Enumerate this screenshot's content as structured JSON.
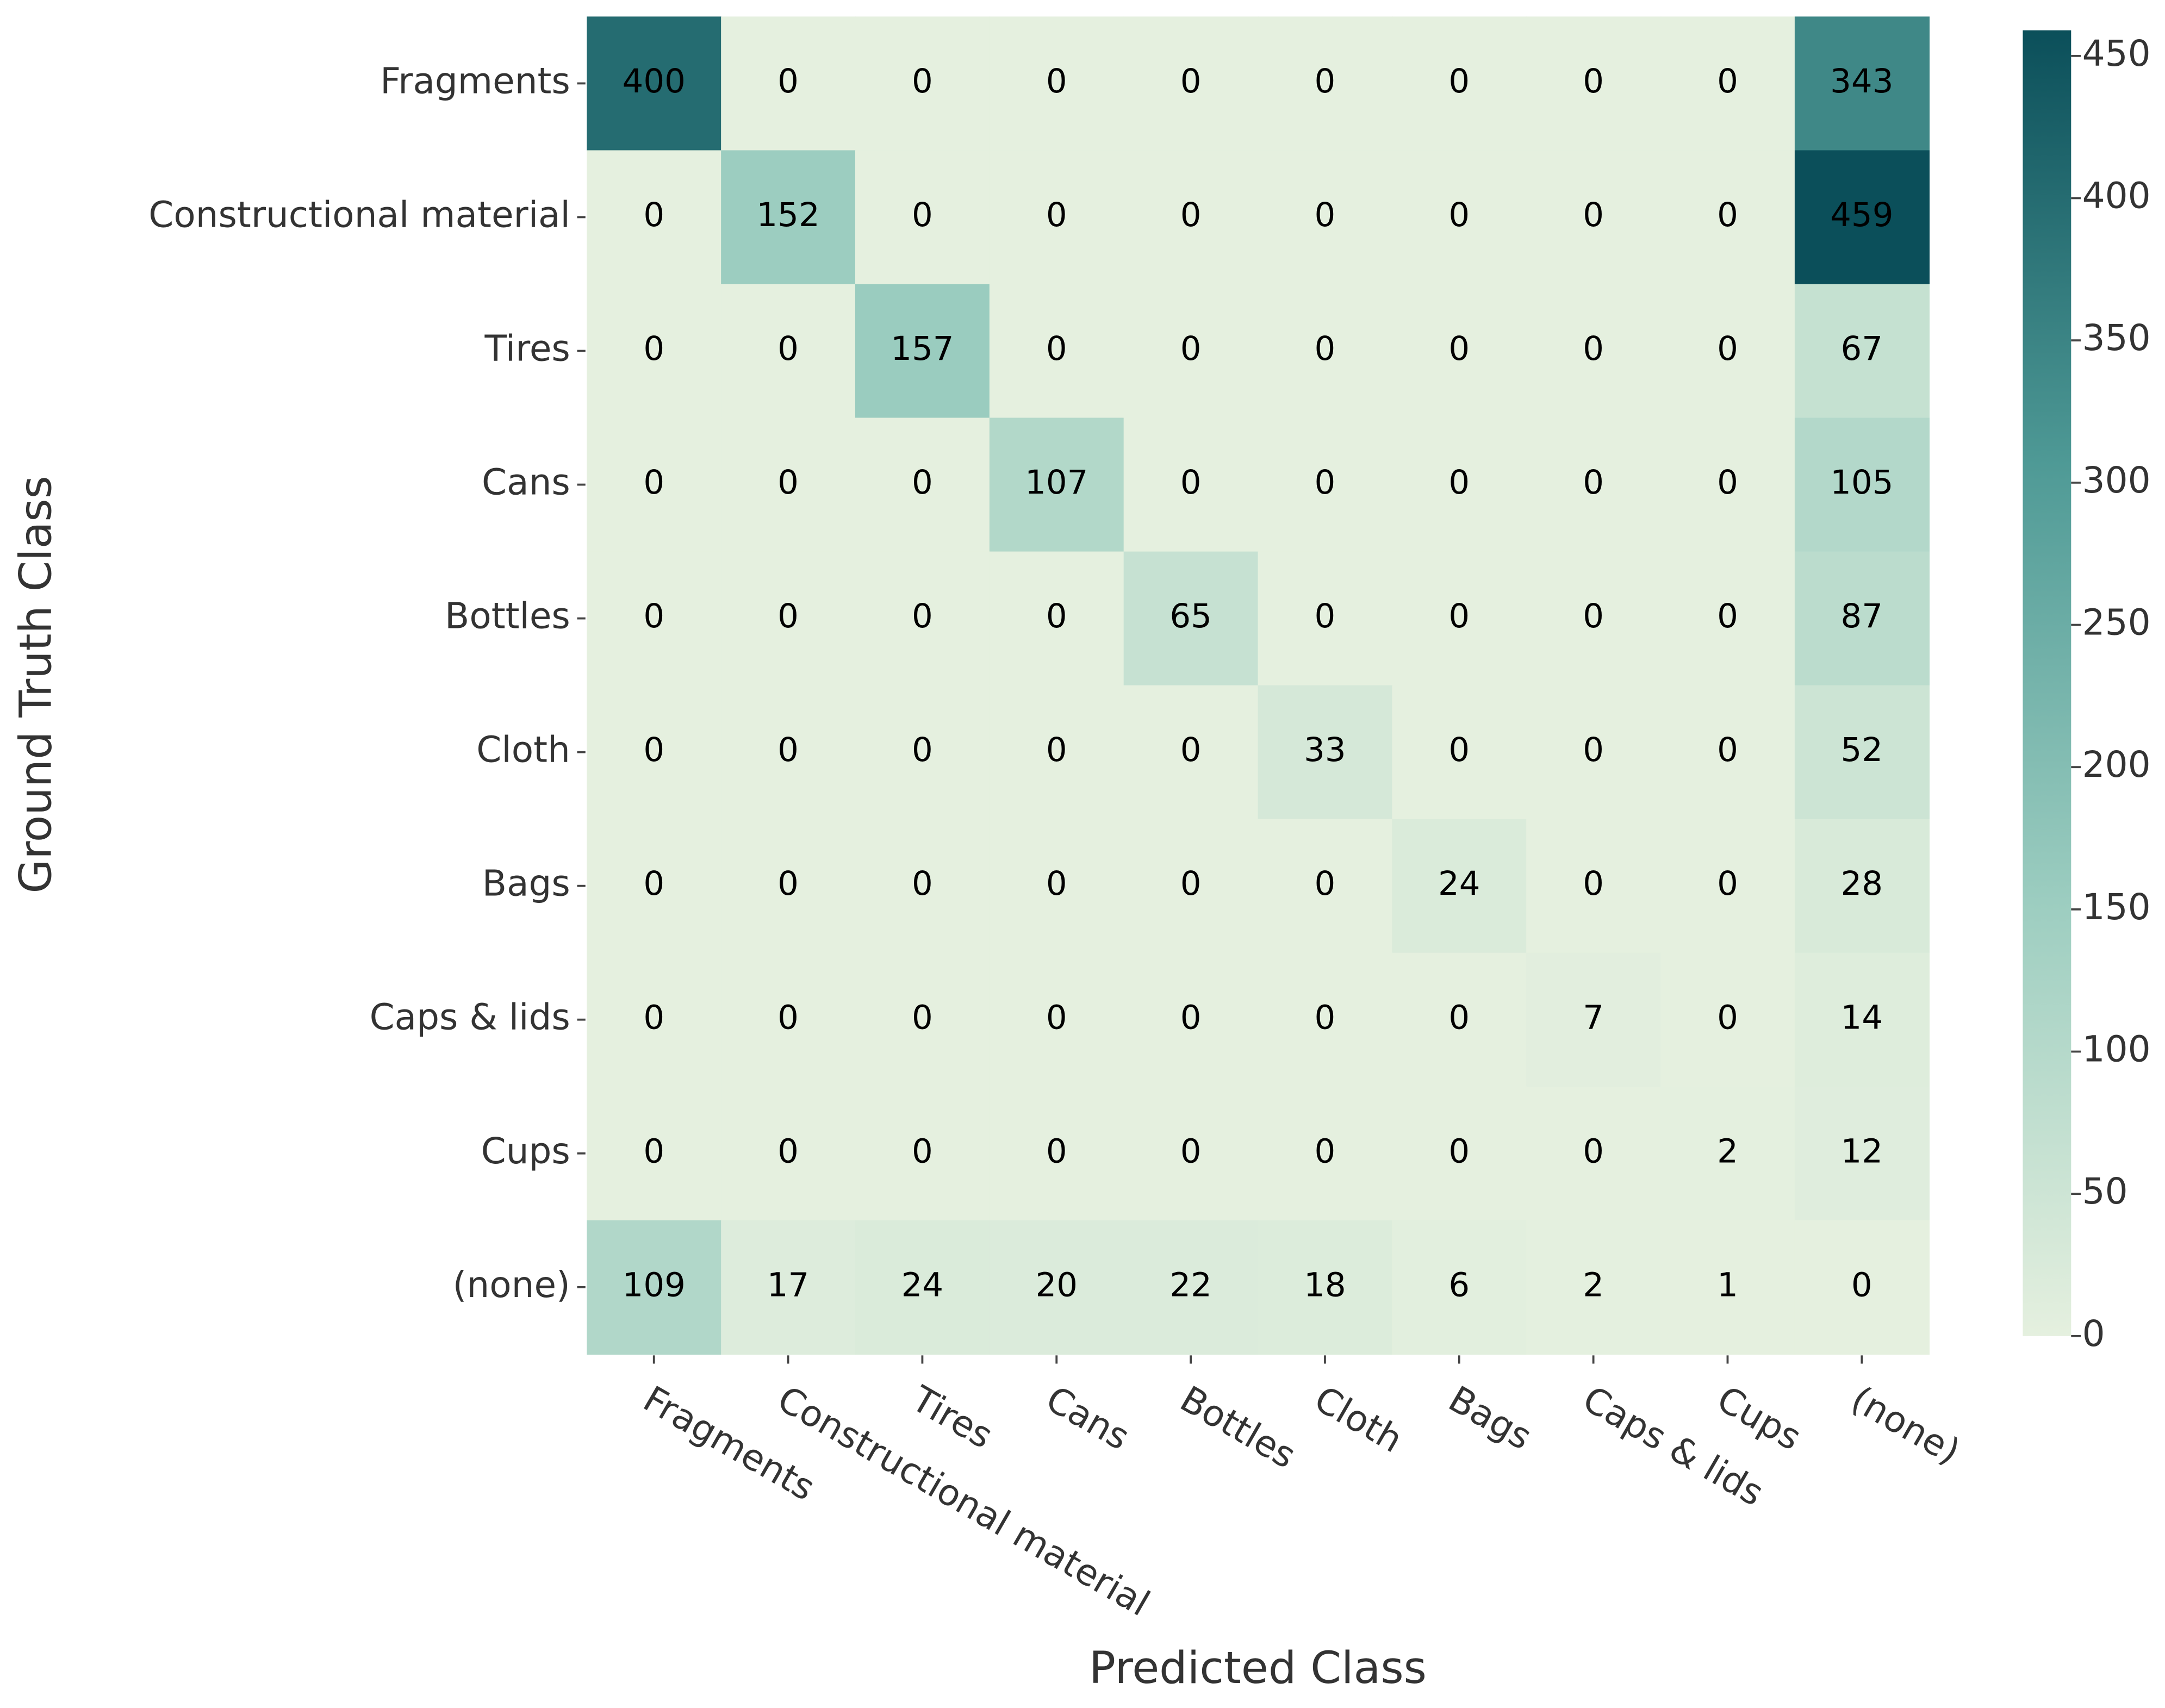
{
  "chart_data": {
    "type": "heatmap",
    "x_label": "Predicted Class",
    "y_label": "Ground Truth Class",
    "x_categories": [
      "Fragments",
      "Constructional material",
      "Tires",
      "Cans",
      "Bottles",
      "Cloth",
      "Bags",
      "Caps & lids",
      "Cups",
      "(none)"
    ],
    "y_categories": [
      "Fragments",
      "Constructional material",
      "Tires",
      "Cans",
      "Bottles",
      "Cloth",
      "Bags",
      "Caps & lids",
      "Cups",
      "(none)"
    ],
    "z": [
      [
        400,
        0,
        0,
        0,
        0,
        0,
        0,
        0,
        0,
        343
      ],
      [
        0,
        152,
        0,
        0,
        0,
        0,
        0,
        0,
        0,
        459
      ],
      [
        0,
        0,
        157,
        0,
        0,
        0,
        0,
        0,
        0,
        67
      ],
      [
        0,
        0,
        0,
        107,
        0,
        0,
        0,
        0,
        0,
        105
      ],
      [
        0,
        0,
        0,
        0,
        65,
        0,
        0,
        0,
        0,
        87
      ],
      [
        0,
        0,
        0,
        0,
        0,
        33,
        0,
        0,
        0,
        52
      ],
      [
        0,
        0,
        0,
        0,
        0,
        0,
        24,
        0,
        0,
        28
      ],
      [
        0,
        0,
        0,
        0,
        0,
        0,
        0,
        7,
        0,
        14
      ],
      [
        0,
        0,
        0,
        0,
        0,
        0,
        0,
        0,
        2,
        12
      ],
      [
        109,
        17,
        24,
        20,
        22,
        18,
        6,
        2,
        1,
        0
      ]
    ],
    "colorscale": [
      "#e5f0df",
      "#9ccdc0",
      "#4f9a96",
      "#0b4f5a"
    ],
    "zlim": [
      0,
      459
    ],
    "colorbar_ticks": [
      0,
      50,
      100,
      150,
      200,
      250,
      300,
      350,
      400,
      450
    ]
  }
}
